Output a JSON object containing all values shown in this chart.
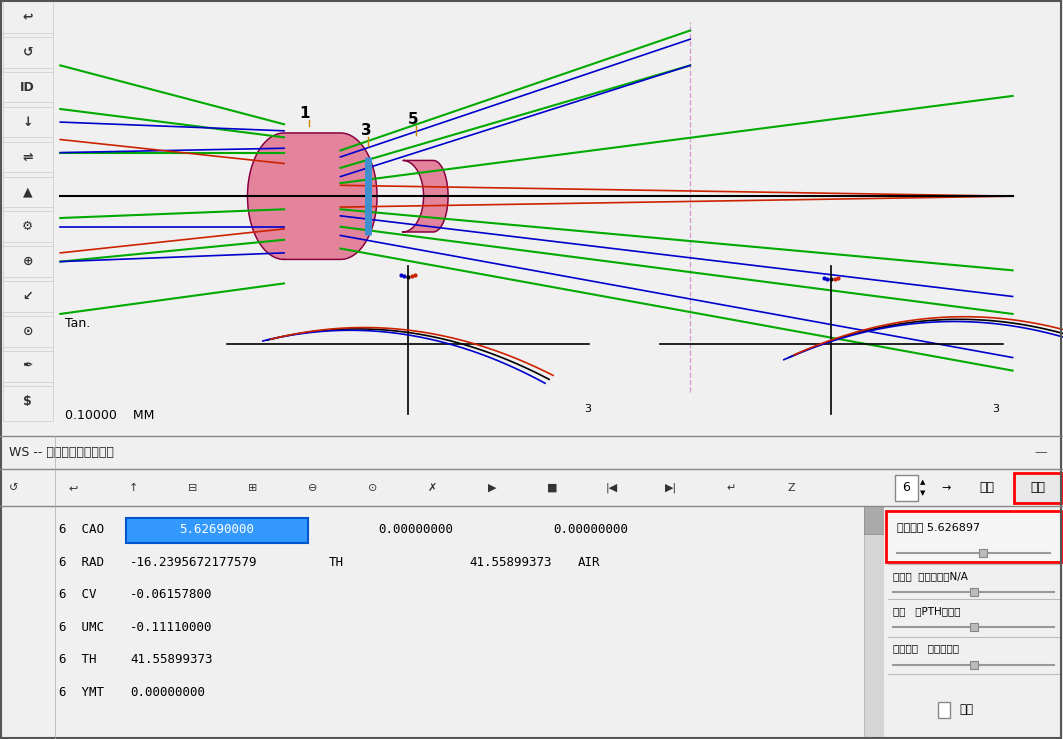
{
  "bg_color": "#f0f0f0",
  "toolbar_bg": "#e8e8e8",
  "main_panel_bg": "#ffffff",
  "title_bar_text": "WS -- 工作表镜头编辑窗口",
  "tan_label": "Tan.",
  "scale_label": "0.10000    MM",
  "data_rows": [
    [
      "6  CAO",
      "5.62690000",
      "",
      "0.00000000",
      "",
      "0.00000000"
    ],
    [
      "6  RAD",
      "-16.2395672177579",
      "TH",
      "41.55899373",
      "AIR",
      ""
    ],
    [
      "6  CV",
      "-0.06157800",
      "",
      "",
      "",
      ""
    ],
    [
      "6  UMC",
      "-0.11110000",
      "",
      "",
      "",
      ""
    ],
    [
      "6  TH",
      "41.55899373",
      "",
      "",
      "",
      ""
    ],
    [
      "6  YMT",
      "0.00000000",
      "",
      "",
      "",
      ""
    ]
  ],
  "selected_data_label": "选中数据 5.626897",
  "update_btn": "更新",
  "select_btn": "选择",
  "spinbox_val": "6",
  "label_wanquda": "弯曲度  空气区域的N/A",
  "label_juli": "距离   有PTH或求解",
  "label_huadong": "滑动元件   不是前表面",
  "label_pianyi": "偏移",
  "lens_color": "#e06080",
  "lens_edge_color": "#800040",
  "aperture_stop_color": "#4090d0",
  "optical_axis_color": "#000000",
  "ray_blue": "#0000cc",
  "ray_red": "#cc2200",
  "ray_green": "#00aa00",
  "dashed_line_color": "#cc88cc"
}
